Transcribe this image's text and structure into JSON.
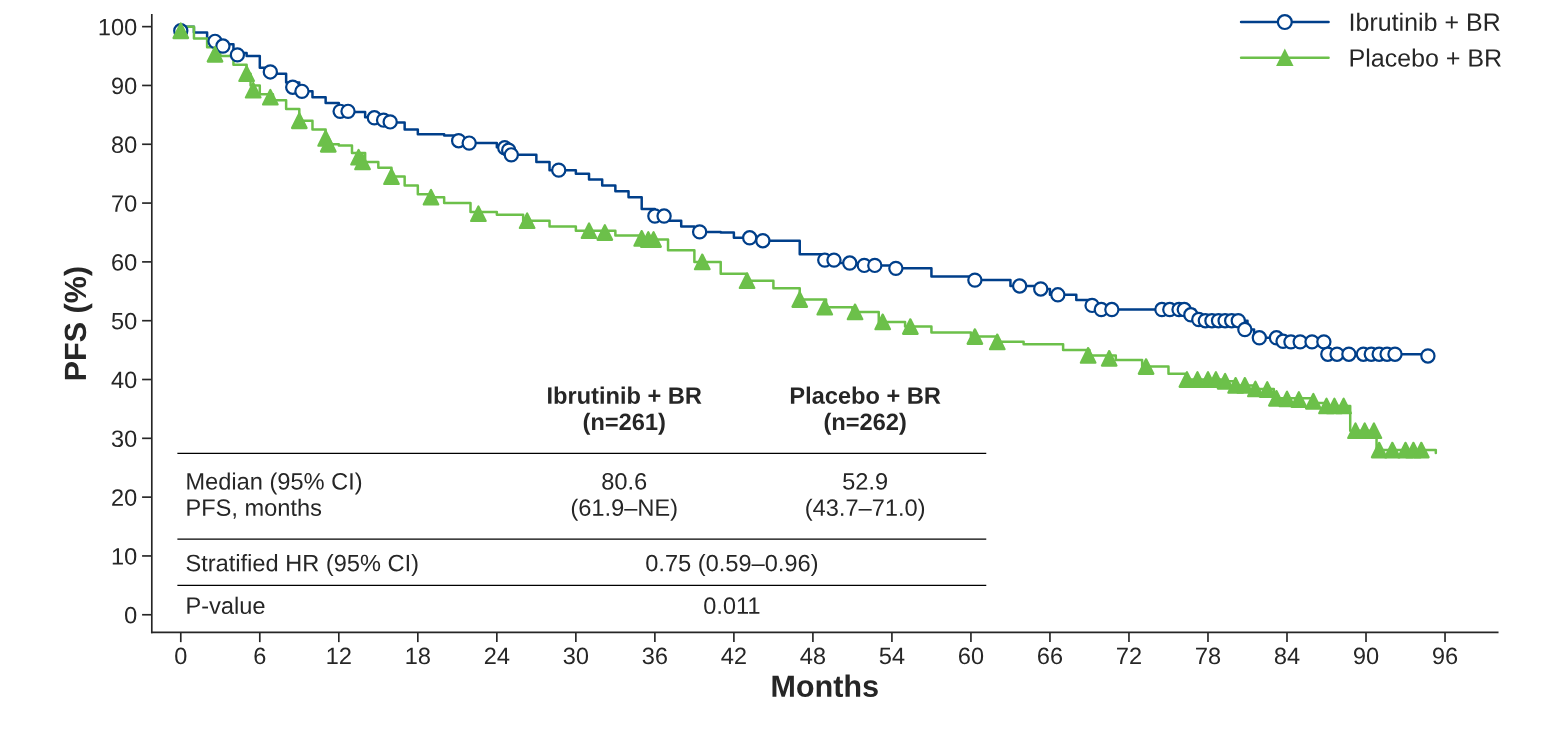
{
  "chart_data": {
    "type": "step",
    "xlabel": "Months",
    "ylabel": "PFS (%)",
    "xlim": [
      -2.2,
      100
    ],
    "ylim": [
      -3,
      102
    ],
    "xticks": [
      0,
      6,
      12,
      18,
      24,
      30,
      36,
      42,
      48,
      54,
      60,
      66,
      72,
      78,
      84,
      90,
      96
    ],
    "yticks": [
      0,
      10,
      20,
      30,
      40,
      50,
      60,
      70,
      80,
      90,
      100
    ],
    "grid": false,
    "legend": "top right",
    "series": [
      {
        "name": "Ibrutinib + BR",
        "color": "#003f8a",
        "marker": "none",
        "x": [
          0,
          1,
          2,
          3,
          4,
          5,
          6,
          7,
          8,
          9,
          10,
          11,
          12,
          13,
          14,
          16,
          17,
          18,
          20,
          21,
          22,
          24,
          25,
          27,
          28,
          30,
          31,
          32,
          33,
          34,
          35,
          36,
          37,
          38,
          39,
          41,
          42,
          44,
          47,
          49,
          50,
          52,
          54,
          57,
          60,
          63,
          65,
          66,
          68,
          69,
          70,
          76,
          77,
          78,
          80.5,
          81,
          81.5,
          83.5,
          87,
          94.7
        ],
        "values": [
          100,
          99,
          98,
          97,
          95.5,
          95,
          93,
          92,
          90.5,
          89,
          88,
          87,
          85.6,
          85.5,
          84.6,
          83.7,
          82.5,
          81.7,
          81.5,
          80.6,
          80.2,
          79.5,
          78.2,
          77,
          75.6,
          75,
          74,
          73,
          72,
          71,
          69,
          67.8,
          67,
          66,
          65.1,
          65,
          64.1,
          63.6,
          61.3,
          60.3,
          59.8,
          59.4,
          58.9,
          57.5,
          56.9,
          55.9,
          55.4,
          54.4,
          53.5,
          52.6,
          51.9,
          51.9,
          50.5,
          50,
          50,
          48.5,
          47.1,
          46.4,
          44.3,
          44
        ]
      },
      {
        "type": "scatter",
        "color": "#003f8a",
        "marker": "circle",
        "x": [
          0,
          2.6,
          3.2,
          4.3,
          6.8,
          8.5,
          9.2,
          12.1,
          12.7,
          14.7,
          15.4,
          15.9,
          21.1,
          21.9,
          24.6,
          24.9,
          25.1,
          28.7,
          36,
          36.7,
          39.4,
          43.2,
          44.2,
          48.9,
          49.6,
          50.8,
          51.9,
          52.7,
          54.3,
          60.3,
          63.7,
          65.3,
          66.6,
          69.2,
          69.9,
          70.7,
          74.5,
          75.1,
          75.8,
          76.2,
          76.7,
          77.3,
          77.8,
          78.3,
          78.8,
          79.3,
          79.8,
          80.3,
          80.8,
          81.9,
          83.2,
          83.7,
          84.3,
          85,
          85.9,
          86.8,
          87.1,
          87.8,
          88.7,
          89.8,
          90.4,
          91,
          91.6,
          92.2,
          94.7
        ],
        "values": [
          99.3,
          97.5,
          96.7,
          95.2,
          92.3,
          89.7,
          89,
          85.6,
          85.6,
          84.5,
          84.1,
          83.8,
          80.6,
          80.2,
          79.4,
          79,
          78.2,
          75.6,
          67.8,
          67.8,
          65.1,
          64.1,
          63.6,
          60.3,
          60.3,
          59.8,
          59.4,
          59.4,
          58.9,
          56.9,
          55.9,
          55.4,
          54.4,
          52.6,
          51.9,
          51.9,
          51.9,
          51.9,
          51.9,
          51.9,
          51,
          50.2,
          50,
          50,
          50,
          50,
          50,
          50,
          48.5,
          47.1,
          47.1,
          46.5,
          46.4,
          46.4,
          46.4,
          46.4,
          44.3,
          44.3,
          44.3,
          44.3,
          44.3,
          44.3,
          44.3,
          44.3,
          44
        ]
      },
      {
        "name": "Placebo + BR",
        "color": "#6cc04a",
        "marker": "none",
        "x": [
          0,
          1,
          2,
          3,
          4,
          5,
          5.3,
          6,
          7,
          8,
          9,
          10,
          11,
          12,
          13,
          14,
          15,
          16,
          17,
          18,
          19,
          20,
          22,
          24,
          26,
          28,
          30,
          33,
          35,
          37,
          39,
          41,
          43,
          45,
          47,
          49,
          51,
          53,
          55,
          57,
          60,
          62,
          64,
          67,
          69,
          71,
          73,
          75,
          76.4,
          79,
          80,
          81.6,
          83,
          86,
          87,
          88.8,
          90.8,
          95.3
        ],
        "values": [
          100,
          98,
          96.5,
          95,
          93.5,
          92,
          90,
          88.5,
          87.5,
          86,
          84,
          82.5,
          80,
          79.8,
          78.5,
          77,
          76,
          74.5,
          73,
          71.5,
          71,
          70,
          68.5,
          68,
          67,
          66,
          65.3,
          64.5,
          63.8,
          62,
          60,
          58,
          56.8,
          55.5,
          53.6,
          52.3,
          51.5,
          49.8,
          49,
          48,
          47.3,
          46.4,
          46,
          45,
          44.1,
          43.3,
          42.2,
          41,
          40,
          39.7,
          39,
          38.4,
          36.8,
          36,
          35.5,
          31.3,
          28,
          27.5
        ]
      },
      {
        "type": "scatter",
        "color": "#6cc04a",
        "marker": "triangle",
        "x": [
          0,
          2.6,
          5,
          5.3,
          5.5,
          6.8,
          9,
          11,
          11.2,
          13.5,
          13.8,
          16,
          19,
          22.6,
          26.3,
          31,
          32.2,
          35,
          35.5,
          35.9,
          39.6,
          43,
          47,
          48.9,
          51.2,
          53.3,
          55.4,
          60.3,
          62,
          68.9,
          70.5,
          73.3,
          76.4,
          77.2,
          78,
          78.6,
          79.3,
          80.1,
          80.8,
          81.6,
          82.5,
          83.2,
          84,
          84.9,
          86,
          87,
          87.6,
          88.3,
          89.2,
          89.9,
          90.6,
          91,
          92,
          93,
          93.6,
          94.2
        ],
        "values": [
          99.3,
          95.3,
          92,
          null,
          89.2,
          88,
          84,
          81,
          80,
          77.8,
          77,
          74.5,
          71,
          68.2,
          67,
          65.3,
          65,
          64,
          63.8,
          63.8,
          60,
          56.8,
          53.6,
          52.3,
          51.5,
          49.8,
          49,
          47.3,
          46.4,
          44.1,
          43.6,
          42.2,
          40,
          40,
          40,
          40,
          39.7,
          39,
          39,
          38.4,
          38.3,
          36.8,
          36.7,
          36.6,
          36.3,
          35.5,
          35.5,
          35.5,
          31.3,
          31.3,
          31.3,
          28,
          28,
          28,
          28,
          28
        ]
      }
    ],
    "annotations": [
      "Ibrutinib + BR\n(n=261)",
      "Placebo + BR\n(n=262)",
      "Median (95% CI)\nPFS, months",
      "80.6\n(61.9–NE)",
      "52.9\n(43.7–71.0)",
      "Stratified HR (95% CI)",
      "0.75 (0.59–0.96)",
      "P-value",
      "0.011"
    ]
  }
}
